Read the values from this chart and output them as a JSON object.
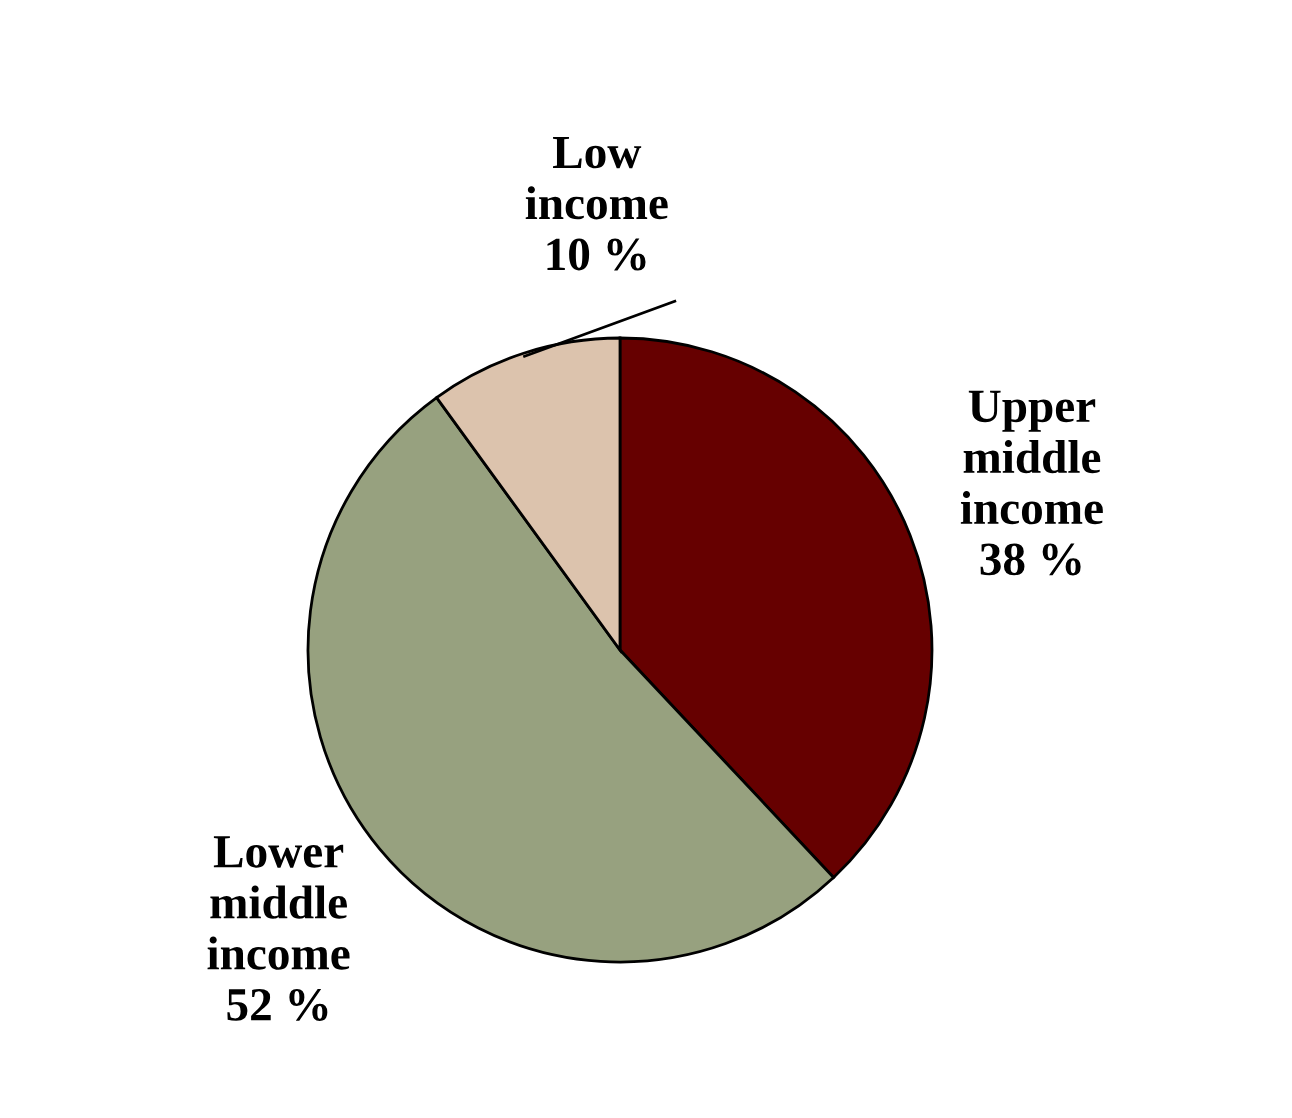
{
  "chart_data": {
    "type": "pie",
    "categories": [
      "Upper middle income",
      "Lower middle income",
      "Low income"
    ],
    "values": [
      38,
      52,
      10
    ],
    "colors": [
      "#660000",
      "#97a17f",
      "#dcc3ad"
    ],
    "value_labels": [
      "38 %",
      "52 %",
      "10 %"
    ]
  }
}
